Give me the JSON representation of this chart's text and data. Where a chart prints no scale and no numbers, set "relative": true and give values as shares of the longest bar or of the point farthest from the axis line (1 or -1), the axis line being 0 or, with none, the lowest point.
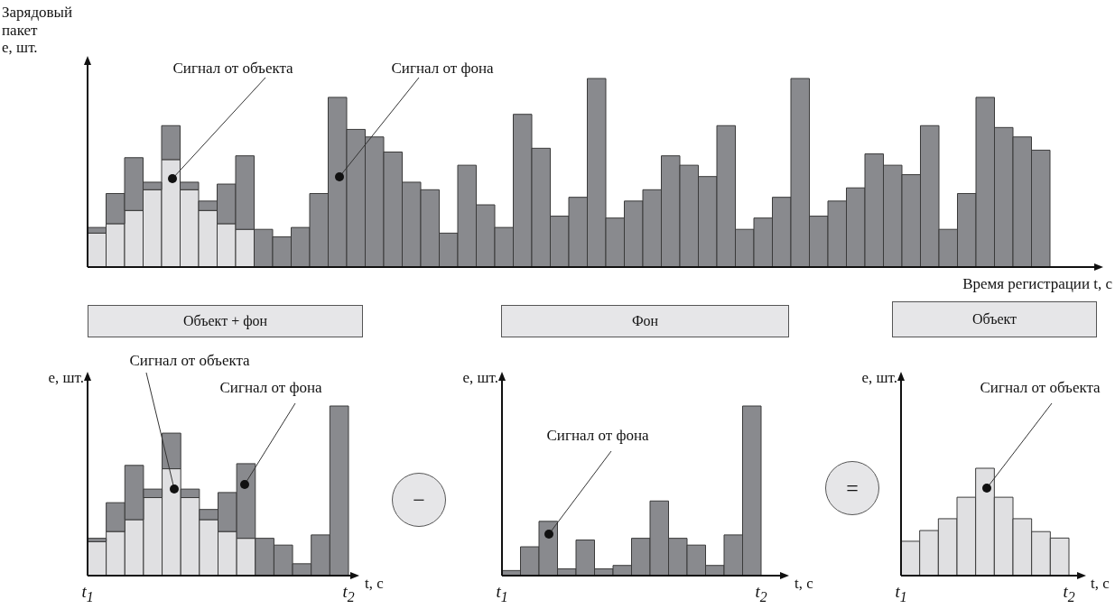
{
  "chart_data": [
    {
      "type": "bar",
      "stacked": true,
      "relative": true,
      "xlabel": "Время регистрации t, с",
      "ylabel": "Зарядовый пакет e, шт.",
      "categories": [
        null,
        null,
        null,
        null,
        null,
        null,
        null,
        null,
        null,
        null,
        null,
        null,
        null,
        null,
        null,
        null,
        null,
        null,
        null,
        null,
        null,
        null,
        null,
        null,
        null,
        null,
        null,
        null,
        null,
        null,
        null,
        null,
        null,
        null,
        null,
        null,
        null,
        null,
        null,
        null,
        null,
        null,
        null,
        null,
        null,
        null,
        null,
        null,
        null,
        null,
        null,
        null
      ],
      "series": [
        {
          "name": "Сигнал от объекта",
          "color": "#e0e0e2",
          "values": [
            0.18,
            0.23,
            0.3,
            0.41,
            0.57,
            0.41,
            0.3,
            0.23,
            0.2,
            null,
            null,
            null,
            null,
            null,
            null,
            null,
            null,
            null,
            null,
            null,
            null,
            null,
            null,
            null,
            null,
            null,
            null,
            null,
            null,
            null,
            null,
            null,
            null,
            null,
            null,
            null,
            null,
            null,
            null,
            null,
            null,
            null,
            null,
            null,
            null,
            null,
            null,
            null,
            null,
            null,
            null,
            null
          ]
        },
        {
          "name": "Сигнал от фона",
          "color": "#898a8e",
          "values": [
            0.03,
            0.16,
            0.28,
            0.04,
            0.18,
            0.04,
            0.05,
            0.21,
            0.39,
            0.2,
            0.16,
            0.21,
            0.39,
            0.9,
            0.73,
            0.69,
            0.61,
            0.45,
            0.41,
            0.18,
            0.54,
            0.33,
            0.21,
            0.81,
            0.63,
            0.27,
            0.37,
            1.0,
            0.26,
            0.35,
            0.41,
            0.59,
            0.54,
            0.48,
            0.75,
            0.2,
            0.26,
            0.37,
            1.0,
            0.27,
            0.35,
            0.42,
            0.6,
            0.54,
            0.49,
            0.75,
            0.2,
            0.39,
            0.9,
            0.74,
            0.69,
            0.62
          ]
        }
      ]
    },
    {
      "type": "bar",
      "stacked": true,
      "relative": true,
      "title": "Объект + фон",
      "xlabel": "t, с",
      "ylabel": "e, шт.",
      "annotations": [
        "t$_{1}$",
        "t$_{2}$"
      ],
      "categories": [
        null,
        null,
        null,
        null,
        null,
        null,
        null,
        null,
        null,
        null,
        null,
        null,
        null,
        null
      ],
      "series": [
        {
          "name": "Сигнал от объекта",
          "color": "#e0e0e2",
          "values": [
            0.2,
            0.26,
            0.33,
            0.46,
            0.63,
            0.46,
            0.33,
            0.26,
            0.22,
            null,
            null,
            null,
            null,
            null
          ]
        },
        {
          "name": "Сигнал от фона",
          "color": "#898a8e",
          "values": [
            0.02,
            0.17,
            0.32,
            0.05,
            0.21,
            0.05,
            0.06,
            0.23,
            0.44,
            0.22,
            0.18,
            0.07,
            0.24,
            1.0
          ]
        }
      ]
    },
    {
      "type": "bar",
      "relative": true,
      "title": "Фон",
      "xlabel": "t, с",
      "ylabel": "e, шт.",
      "annotations": [
        "t$_{1}$",
        "t$_{2}$",
        "−"
      ],
      "categories": [
        null,
        null,
        null,
        null,
        null,
        null,
        null,
        null,
        null,
        null,
        null,
        null,
        null,
        null
      ],
      "series": [
        {
          "name": "Сигнал от фона",
          "color": "#898a8e",
          "values": [
            0.03,
            0.17,
            0.32,
            0.04,
            0.21,
            0.04,
            0.06,
            0.22,
            0.44,
            0.22,
            0.18,
            0.06,
            0.24,
            1.0
          ]
        }
      ]
    },
    {
      "type": "bar",
      "relative": true,
      "title": "Объект",
      "xlabel": "t, с",
      "ylabel": "e, шт.",
      "annotations": [
        "t$_{1}$",
        "t$_{2}$",
        "="
      ],
      "categories": [
        null,
        null,
        null,
        null,
        null,
        null,
        null,
        null,
        null
      ],
      "series": [
        {
          "name": "Сигнал от объекта",
          "color": "#e0e0e2",
          "values": [
            0.32,
            0.42,
            0.53,
            0.73,
            1.0,
            0.73,
            0.53,
            0.41,
            0.35
          ]
        }
      ]
    }
  ]
}
